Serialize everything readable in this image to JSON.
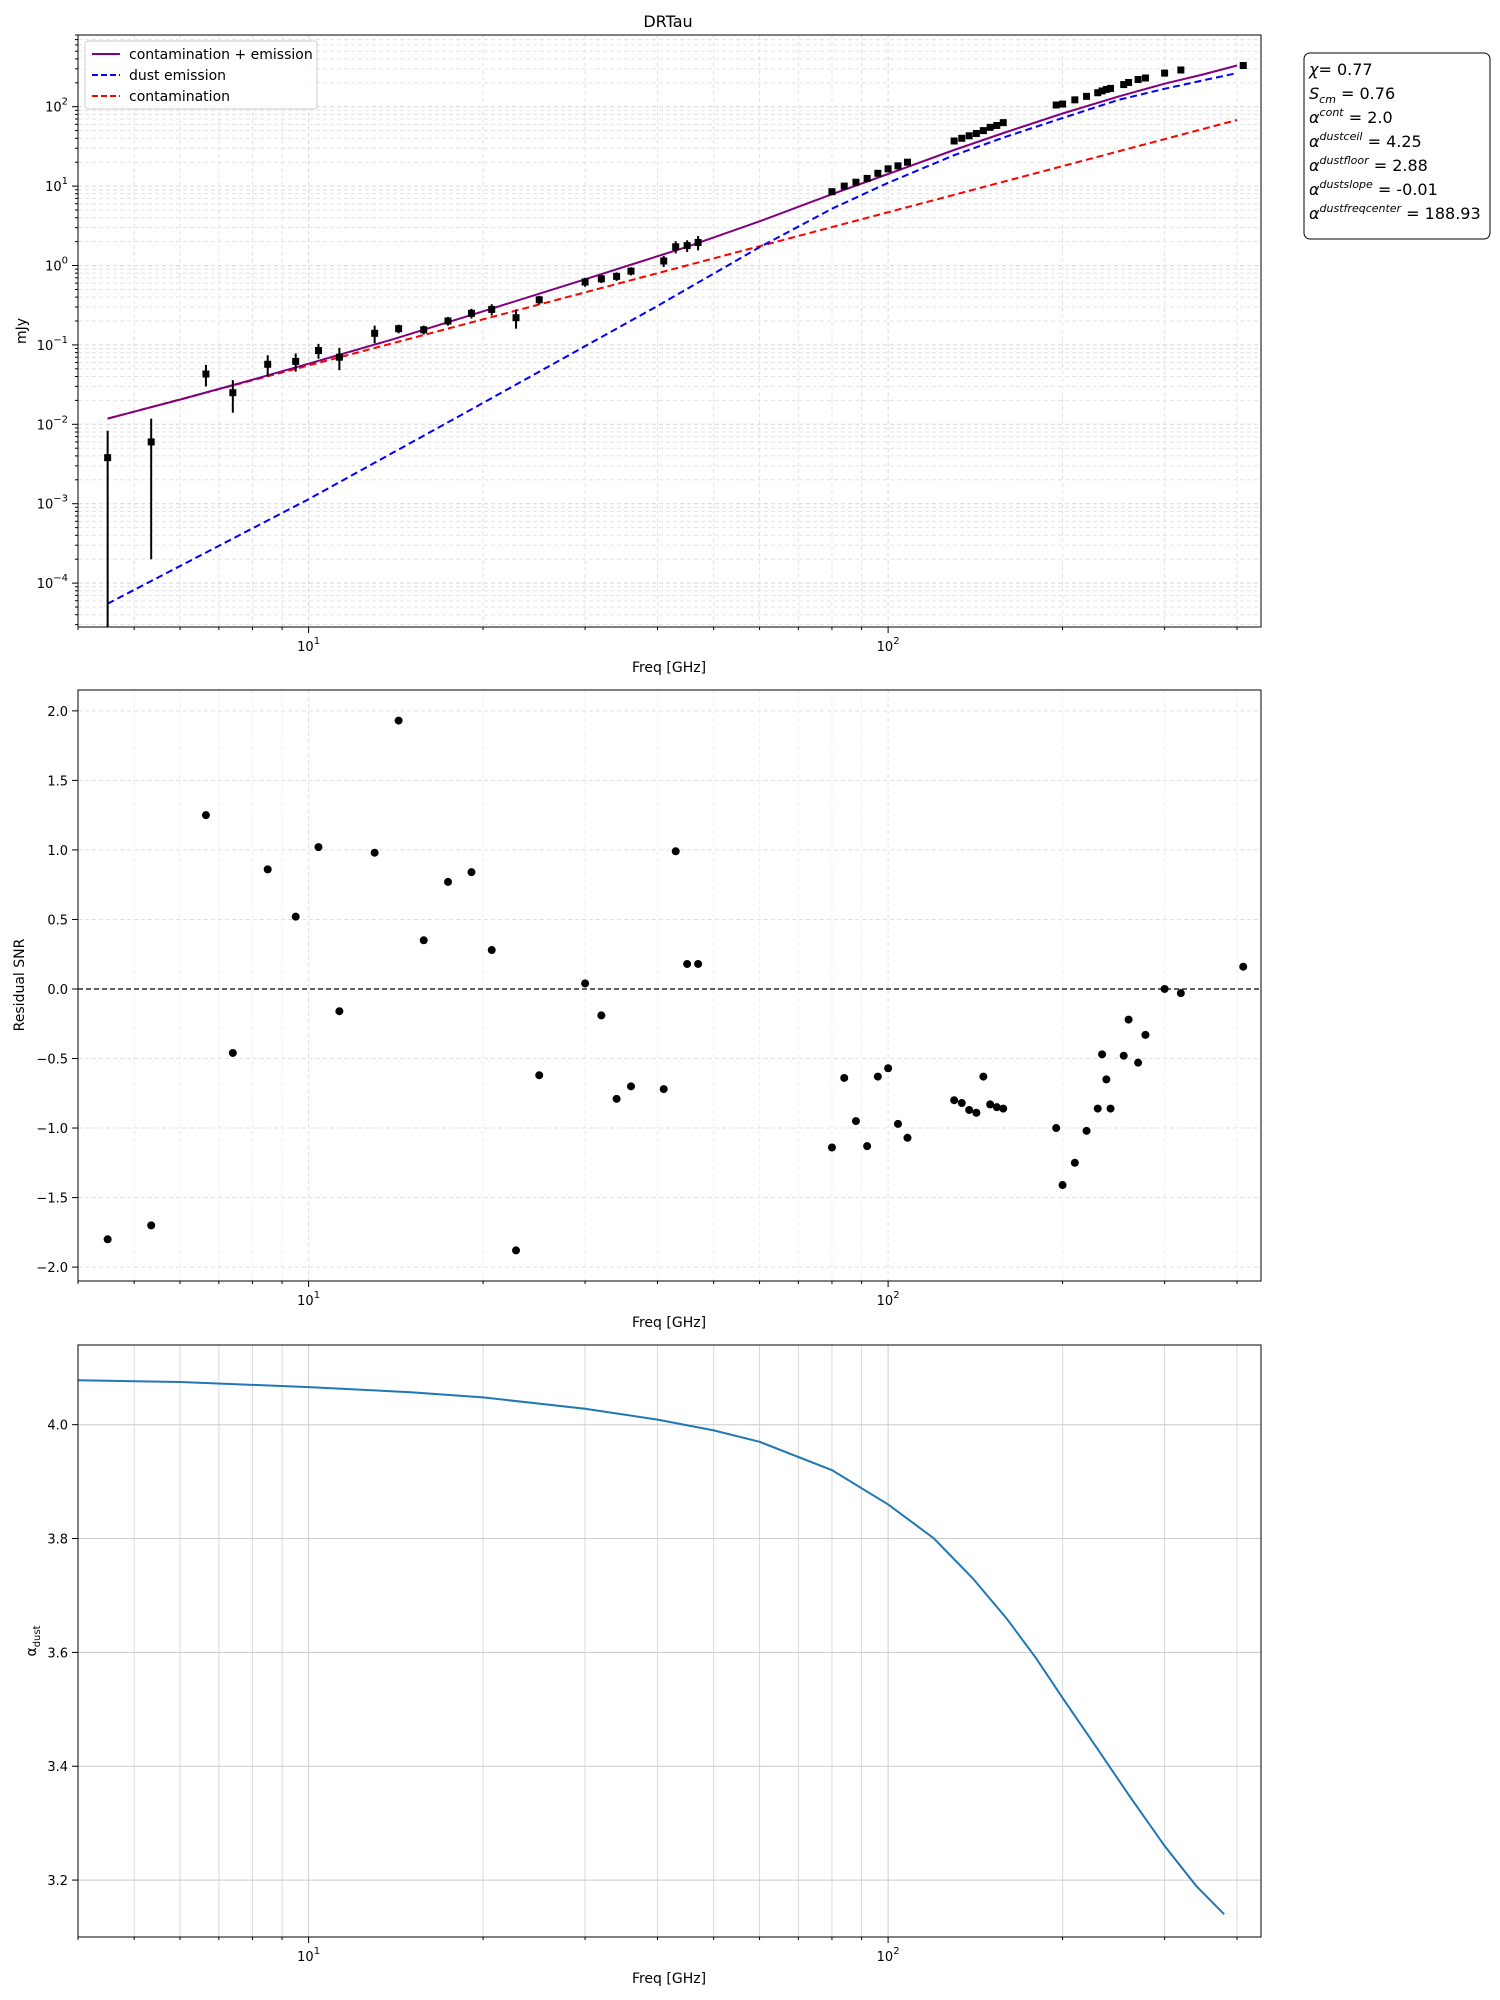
{
  "figure": {
    "title": "DRTau"
  },
  "chart_data": [
    {
      "type": "line",
      "title": "DRTau",
      "xlabel": "Freq [GHz]",
      "ylabel": "mJy",
      "xscale": "log",
      "yscale": "log",
      "xlim": [
        4.0,
        440
      ],
      "ylim": [
        2.8e-05,
        800
      ],
      "grid": true,
      "legend_position": "top-left",
      "x_tick_labels": [
        "10^1",
        "10^2"
      ],
      "y_tick_labels": [
        "10^-4",
        "10^-3",
        "10^-2",
        "10^-1",
        "10^0",
        "10^1",
        "10^2"
      ],
      "series": [
        {
          "name": "contamination + emission",
          "color": "#800080",
          "style": "solid",
          "x": [
            4.5,
            6,
            8,
            10,
            14,
            20,
            30,
            45,
            60,
            80,
            100,
            130,
            160,
            200,
            250,
            300,
            350,
            400
          ],
          "y": [
            0.0118,
            0.0205,
            0.0365,
            0.058,
            0.118,
            0.265,
            0.67,
            1.72,
            3.6,
            7.9,
            14.2,
            28.5,
            48,
            82,
            135,
            195,
            255,
            330
          ]
        },
        {
          "name": "dust emission",
          "color": "#0000ff",
          "style": "dashed",
          "x": [
            4.5,
            10,
            20,
            40,
            60,
            80,
            100,
            130,
            160,
            200,
            250,
            300,
            350,
            400
          ],
          "y": [
            5.5e-05,
            0.00114,
            0.0186,
            0.31,
            1.7,
            5.2,
            11.0,
            24.5,
            42,
            72,
            122,
            168,
            215,
            265
          ]
        },
        {
          "name": "contamination",
          "color": "#ff0000",
          "style": "dashed",
          "x": [
            4.5,
            400
          ],
          "y": [
            0.0118,
            68
          ]
        }
      ],
      "measurements": {
        "name": "data",
        "color": "#000000",
        "x": [
          4.5,
          5.35,
          6.65,
          7.4,
          8.5,
          9.5,
          10.4,
          11.3,
          13.0,
          14.3,
          15.8,
          17.4,
          19.1,
          20.7,
          22.8,
          25.0,
          30.0,
          32.0,
          34.0,
          36.0,
          41.0,
          43.0,
          45.0,
          47.0,
          80.0,
          84.0,
          88.0,
          92.0,
          96.0,
          100.0,
          104.0,
          108.0,
          130.0,
          134.0,
          138.0,
          142.0,
          146.0,
          150.0,
          154.0,
          158.0,
          195.0,
          200.0,
          210.0,
          220.0,
          230.0,
          234.0,
          238.0,
          242.0,
          255.0,
          260.0,
          270.0,
          278.0,
          300.0,
          320.0,
          410.0
        ],
        "y": [
          0.0038,
          0.006,
          0.043,
          0.025,
          0.057,
          0.062,
          0.085,
          0.07,
          0.14,
          0.16,
          0.155,
          0.2,
          0.25,
          0.28,
          0.22,
          0.37,
          0.62,
          0.68,
          0.73,
          0.85,
          1.14,
          1.72,
          1.78,
          1.95,
          8.5,
          10.0,
          11.2,
          12.5,
          14.5,
          16.5,
          18.0,
          20.0,
          37.0,
          40.0,
          43.0,
          46.0,
          50.0,
          55.0,
          58.0,
          63.0,
          105.0,
          108.0,
          122.0,
          135.0,
          150.0,
          158.0,
          165.0,
          170.0,
          190.0,
          202.0,
          220.0,
          230.0,
          265.0,
          290.0,
          330.0
        ],
        "yerr": [
          0.0045,
          0.0058,
          0.013,
          0.011,
          0.017,
          0.016,
          0.018,
          0.022,
          0.035,
          0.02,
          0.02,
          0.025,
          0.035,
          0.045,
          0.06,
          0.045,
          0.08,
          0.08,
          0.09,
          0.1,
          0.18,
          0.3,
          0.3,
          0.4,
          0.8,
          0.9,
          1.0,
          1.1,
          1.2,
          1.3,
          1.4,
          1.5,
          3.0,
          3.0,
          3.2,
          3.5,
          3.8,
          4.0,
          4.2,
          4.5,
          8.0,
          8.0,
          9.0,
          10.0,
          11.0,
          12.0,
          12.0,
          13.0,
          14.0,
          15.0,
          16.0,
          17.0,
          19.0,
          21.0,
          24.0
        ]
      },
      "fit_parameters": [
        {
          "symbol": "χ",
          "sup": "",
          "sub": "",
          "value": "= 0.77"
        },
        {
          "symbol": "S",
          "sup": "",
          "sub": "cm",
          "value": " = 0.76"
        },
        {
          "symbol": "α",
          "sup": "cont",
          "sub": "",
          "value": " = 2.0"
        },
        {
          "symbol": "α",
          "sup": "dustceil",
          "sub": "",
          "value": " = 4.25"
        },
        {
          "symbol": "α",
          "sup": "dustfloor",
          "sub": "",
          "value": " = 2.88"
        },
        {
          "symbol": "α",
          "sup": "dustslope",
          "sub": "",
          "value": " = -0.01"
        },
        {
          "symbol": "α",
          "sup": "dustfreqcenter",
          "sub": "",
          "value": " = 188.93"
        }
      ]
    },
    {
      "type": "scatter",
      "title": "",
      "xlabel": "Freq [GHz]",
      "ylabel": "Residual SNR",
      "xscale": "log",
      "xlim": [
        4.0,
        440
      ],
      "ylim": [
        -2.1,
        2.15
      ],
      "grid": true,
      "reference_line_y": 0.0,
      "x_tick_labels": [
        "10^1",
        "10^2"
      ],
      "y_tick_labels": [
        "-2.0",
        "-1.5",
        "-1.0",
        "-0.5",
        "0.0",
        "0.5",
        "1.0",
        "1.5",
        "2.0"
      ],
      "x": [
        4.5,
        5.35,
        6.65,
        7.4,
        8.5,
        9.5,
        10.4,
        11.3,
        13.0,
        14.3,
        15.8,
        17.4,
        19.1,
        20.7,
        22.8,
        25.0,
        30.0,
        32.0,
        34.0,
        36.0,
        41.0,
        43.0,
        45.0,
        47.0,
        80.0,
        84.0,
        88.0,
        92.0,
        96.0,
        100.0,
        104.0,
        108.0,
        130.0,
        134.0,
        138.0,
        142.0,
        146.0,
        150.0,
        154.0,
        158.0,
        195.0,
        200.0,
        210.0,
        220.0,
        230.0,
        234.0,
        238.0,
        242.0,
        255.0,
        260.0,
        270.0,
        278.0,
        300.0,
        320.0,
        410.0
      ],
      "y": [
        -1.8,
        -1.7,
        1.25,
        -0.46,
        0.86,
        0.52,
        1.02,
        -0.16,
        0.98,
        1.93,
        0.35,
        0.77,
        0.84,
        0.28,
        -1.88,
        -0.62,
        0.04,
        -0.19,
        -0.79,
        -0.7,
        -0.72,
        0.99,
        0.18,
        0.18,
        -1.14,
        -0.64,
        -0.95,
        -1.13,
        -0.63,
        -0.57,
        -0.97,
        -1.07,
        -0.8,
        -0.82,
        -0.87,
        -0.89,
        -0.63,
        -0.83,
        -0.85,
        -0.86,
        -1.0,
        -1.41,
        -1.25,
        -1.02,
        -0.86,
        -0.47,
        -0.65,
        -0.86,
        -0.48,
        -0.22,
        -0.53,
        -0.33,
        0.0,
        -0.03,
        0.16
      ],
      "color": "#000000"
    },
    {
      "type": "line",
      "title": "",
      "xlabel": "Freq [GHz]",
      "ylabel": "α_dust",
      "xscale": "log",
      "xlim": [
        4.0,
        440
      ],
      "ylim": [
        3.1,
        4.14
      ],
      "grid": true,
      "x_tick_labels": [
        "10^1",
        "10^2"
      ],
      "y_tick_labels": [
        "3.2",
        "3.4",
        "3.6",
        "3.8",
        "4.0"
      ],
      "series": [
        {
          "name": "",
          "color": "#1f77b4",
          "x": [
            4,
            6,
            10,
            15,
            20,
            30,
            40,
            50,
            60,
            80,
            100,
            120,
            140,
            160,
            180,
            200,
            230,
            260,
            300,
            340,
            380
          ],
          "y": [
            4.078,
            4.075,
            4.066,
            4.057,
            4.048,
            4.028,
            4.009,
            3.99,
            3.97,
            3.92,
            3.86,
            3.8,
            3.73,
            3.66,
            3.59,
            3.52,
            3.43,
            3.35,
            3.26,
            3.19,
            3.14
          ]
        }
      ]
    }
  ]
}
